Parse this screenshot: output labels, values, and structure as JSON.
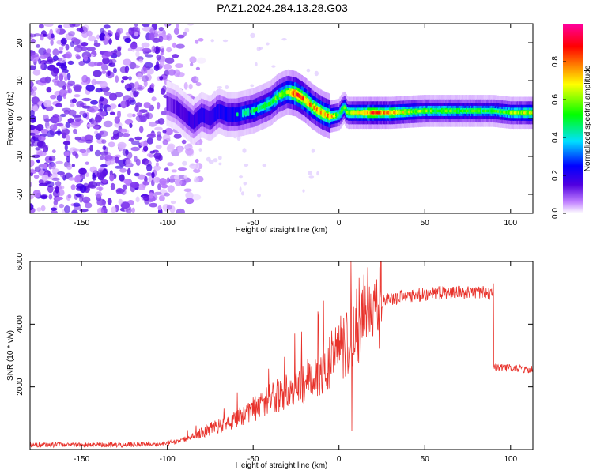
{
  "title": "PAZ1.2024.284.13.28.G03",
  "chart_data": [
    {
      "type": "heatmap",
      "xlabel": "Height of straight line (km)",
      "ylabel": "Frequency (Hz)",
      "xlim": [
        -180,
        113
      ],
      "ylim": [
        -25,
        25
      ],
      "xticks": [
        -150,
        -100,
        -50,
        0,
        50,
        100
      ],
      "yticks": [
        -20,
        -10,
        0,
        10,
        20
      ],
      "colorbar": {
        "label": "Normalized spectral amplitude",
        "range": [
          0,
          1
        ],
        "ticks": [
          "0.0",
          "0.2",
          "0.4",
          "0.6",
          "0.8"
        ],
        "colormap": [
          "#ffffff",
          "#c080ff",
          "#5000e0",
          "#0000ff",
          "#00e0ff",
          "#00ff00",
          "#ffff00",
          "#ff8000",
          "#ff0000",
          "#ff00a0"
        ]
      },
      "noise_region_km": [
        -180,
        -90
      ],
      "ridge_frequency": {
        "x": [
          -100,
          -95,
          -90,
          -85,
          -80,
          -75,
          -70,
          -65,
          -60,
          -55,
          -50,
          -45,
          -40,
          -35,
          -30,
          -25,
          -20,
          -15,
          -10,
          -5,
          0,
          3,
          5,
          10,
          20,
          30,
          50,
          70,
          90,
          100,
          113
        ],
        "y": [
          4,
          3,
          1,
          -1,
          1,
          0,
          2,
          1,
          1,
          1.5,
          2,
          3,
          4,
          6,
          7,
          6.5,
          5,
          3,
          1.5,
          0.5,
          1,
          3,
          1.5,
          1.5,
          1.5,
          1.5,
          2,
          2,
          2,
          1.5,
          1.5
        ]
      },
      "ridge_amplitude": {
        "x": [
          -100,
          -85,
          -70,
          -50,
          -40,
          -30,
          -25,
          -15,
          -5,
          0,
          5,
          20,
          50,
          90,
          113
        ],
        "y": [
          0.2,
          0.3,
          0.35,
          0.45,
          0.5,
          0.6,
          0.85,
          0.7,
          0.75,
          0.5,
          0.6,
          0.8,
          0.55,
          0.5,
          0.65
        ]
      }
    },
    {
      "type": "line",
      "xlabel": "Height of straight line (km)",
      "ylabel": "SNR (10 * v/v)",
      "xlim": [
        -180,
        113
      ],
      "ylim": [
        0,
        6000
      ],
      "xticks": [
        -150,
        -100,
        -50,
        0,
        50,
        100
      ],
      "yticks": [
        2000,
        4000,
        6000
      ],
      "color": "#e8322b",
      "series_envelope": {
        "x": [
          -180,
          -150,
          -120,
          -100,
          -90,
          -80,
          -70,
          -60,
          -50,
          -40,
          -30,
          -20,
          -10,
          -5,
          0,
          5,
          10,
          15,
          20,
          30,
          40,
          50,
          60,
          70,
          80,
          89,
          90,
          92,
          100,
          113
        ],
        "y": [
          150,
          150,
          160,
          200,
          300,
          550,
          750,
          1000,
          1300,
          1600,
          1900,
          2150,
          2500,
          2750,
          3100,
          3500,
          3900,
          4300,
          4600,
          4800,
          4900,
          4950,
          5000,
          5000,
          5000,
          5000,
          2600,
          2600,
          2600,
          2550
        ]
      },
      "spikes": [
        {
          "x": 7,
          "y": 6000
        },
        {
          "x": 7.5,
          "y": 600
        },
        {
          "x": 90,
          "y": 5300
        }
      ]
    }
  ]
}
